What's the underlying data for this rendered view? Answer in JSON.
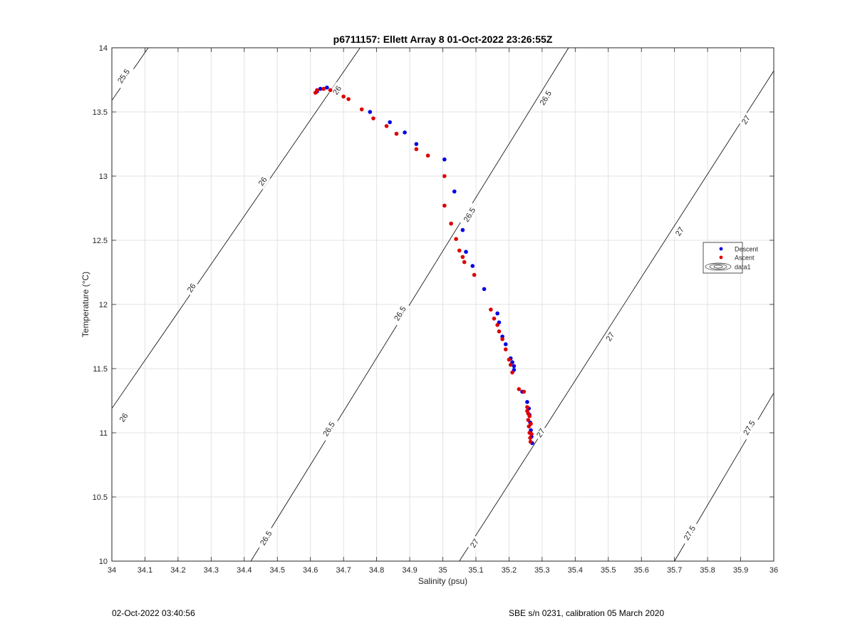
{
  "chart_data": {
    "type": "scatter",
    "title": "p6711157: Ellett Array 8 01-Oct-2022 23:26:55Z",
    "xlabel": "Salinity (psu)",
    "ylabel": "Temperature (°C)",
    "xlim": [
      34,
      36
    ],
    "ylim": [
      10,
      14
    ],
    "xticks": [
      "34",
      "34.1",
      "34.2",
      "34.3",
      "34.4",
      "34.5",
      "34.6",
      "34.7",
      "34.8",
      "34.9",
      "35",
      "35.1",
      "35.2",
      "35.3",
      "35.4",
      "35.5",
      "35.6",
      "35.7",
      "35.8",
      "35.9",
      "36"
    ],
    "yticks": [
      "10",
      "10.5",
      "11",
      "11.5",
      "12",
      "12.5",
      "13",
      "13.5",
      "14"
    ],
    "grid": true,
    "legend_position": "right",
    "legend": [
      "Descent",
      "Ascent",
      "data1"
    ],
    "colors": {
      "descent": "#0000e6",
      "ascent": "#dd0000",
      "contour": "#000000",
      "grid": "#e3e3e3"
    },
    "series": [
      {
        "name": "Descent",
        "points": [
          [
            34.62,
            13.66
          ],
          [
            34.63,
            13.68
          ],
          [
            34.65,
            13.69
          ],
          [
            34.78,
            13.5
          ],
          [
            34.84,
            13.42
          ],
          [
            34.885,
            13.34
          ],
          [
            34.92,
            13.25
          ],
          [
            35.005,
            13.13
          ],
          [
            35.035,
            12.88
          ],
          [
            35.06,
            12.58
          ],
          [
            35.07,
            12.41
          ],
          [
            35.09,
            12.3
          ],
          [
            35.125,
            12.12
          ],
          [
            35.165,
            11.93
          ],
          [
            35.17,
            11.86
          ],
          [
            35.18,
            11.75
          ],
          [
            35.19,
            11.69
          ],
          [
            35.205,
            11.58
          ],
          [
            35.21,
            11.55
          ],
          [
            35.215,
            11.52
          ],
          [
            35.215,
            11.49
          ],
          [
            35.24,
            11.32
          ],
          [
            35.255,
            11.24
          ],
          [
            35.26,
            11.19
          ],
          [
            35.262,
            11.14
          ],
          [
            35.264,
            11.08
          ],
          [
            35.266,
            11.02
          ],
          [
            35.268,
            10.97
          ],
          [
            35.27,
            10.92
          ]
        ]
      },
      {
        "name": "Ascent",
        "points": [
          [
            34.615,
            13.65
          ],
          [
            34.62,
            13.67
          ],
          [
            34.64,
            13.68
          ],
          [
            34.66,
            13.67
          ],
          [
            34.7,
            13.62
          ],
          [
            34.715,
            13.6
          ],
          [
            34.755,
            13.52
          ],
          [
            34.79,
            13.45
          ],
          [
            34.83,
            13.39
          ],
          [
            34.86,
            13.33
          ],
          [
            34.92,
            13.21
          ],
          [
            34.955,
            13.16
          ],
          [
            35.005,
            13.0
          ],
          [
            35.005,
            12.77
          ],
          [
            35.025,
            12.63
          ],
          [
            35.04,
            12.51
          ],
          [
            35.05,
            12.42
          ],
          [
            35.06,
            12.37
          ],
          [
            35.065,
            12.33
          ],
          [
            35.095,
            12.23
          ],
          [
            35.145,
            11.96
          ],
          [
            35.155,
            11.89
          ],
          [
            35.165,
            11.84
          ],
          [
            35.17,
            11.79
          ],
          [
            35.18,
            11.73
          ],
          [
            35.19,
            11.65
          ],
          [
            35.2,
            11.57
          ],
          [
            35.205,
            11.53
          ],
          [
            35.21,
            11.47
          ],
          [
            35.23,
            11.34
          ],
          [
            35.245,
            11.32
          ],
          [
            35.255,
            11.2
          ],
          [
            35.258,
            11.15
          ],
          [
            35.258,
            11.1
          ],
          [
            35.26,
            11.05
          ],
          [
            35.262,
            11.0
          ],
          [
            35.264,
            10.96
          ],
          [
            35.255,
            11.17
          ],
          [
            35.262,
            11.13
          ],
          [
            35.266,
            11.07
          ],
          [
            35.268,
            10.99
          ],
          [
            35.265,
            10.93
          ]
        ]
      }
    ],
    "contours": [
      {
        "label": "25.5",
        "points": [
          [
            34,
            13.59
          ],
          [
            34.11,
            14.0
          ]
        ]
      },
      {
        "label": "26",
        "points": [
          [
            34,
            11.19
          ],
          [
            34.75,
            14.0
          ]
        ]
      },
      {
        "label": "26.5",
        "points": [
          [
            34.42,
            10.0
          ],
          [
            35.38,
            14.0
          ]
        ]
      },
      {
        "label": "27",
        "points": [
          [
            35.05,
            10.0
          ],
          [
            36,
            13.82
          ]
        ]
      },
      {
        "label": "27.5",
        "points": [
          [
            35.7,
            10.0
          ],
          [
            36,
            11.31
          ]
        ]
      }
    ],
    "contour_labels": [
      {
        "text": "25.5",
        "at": [
          34.035,
          13.78
        ]
      },
      {
        "text": "26",
        "at": [
          34.68,
          13.67
        ]
      },
      {
        "text": "26",
        "at": [
          34.455,
          12.96
        ]
      },
      {
        "text": "26",
        "at": [
          34.24,
          12.13
        ]
      },
      {
        "text": "26",
        "at": [
          34.035,
          11.12
        ]
      },
      {
        "text": "26.5",
        "at": [
          35.31,
          13.61
        ]
      },
      {
        "text": "26.5",
        "at": [
          35.08,
          12.7
        ]
      },
      {
        "text": "26.5",
        "at": [
          34.87,
          11.93
        ]
      },
      {
        "text": "26.5",
        "at": [
          34.655,
          11.03
        ]
      },
      {
        "text": "26.5",
        "at": [
          34.465,
          10.18
        ]
      },
      {
        "text": "27",
        "at": [
          35.915,
          13.44
        ]
      },
      {
        "text": "27",
        "at": [
          35.715,
          12.57
        ]
      },
      {
        "text": "27",
        "at": [
          35.505,
          11.75
        ]
      },
      {
        "text": "27",
        "at": [
          35.295,
          11.0
        ]
      },
      {
        "text": "27",
        "at": [
          35.095,
          10.14
        ]
      },
      {
        "text": "27.5",
        "at": [
          35.925,
          11.04
        ]
      },
      {
        "text": "27.5",
        "at": [
          35.745,
          10.22
        ]
      }
    ]
  },
  "footer": {
    "left": "02-Oct-2022 03:40:56",
    "right": "SBE s/n 0231, calibration 05 March 2020"
  }
}
